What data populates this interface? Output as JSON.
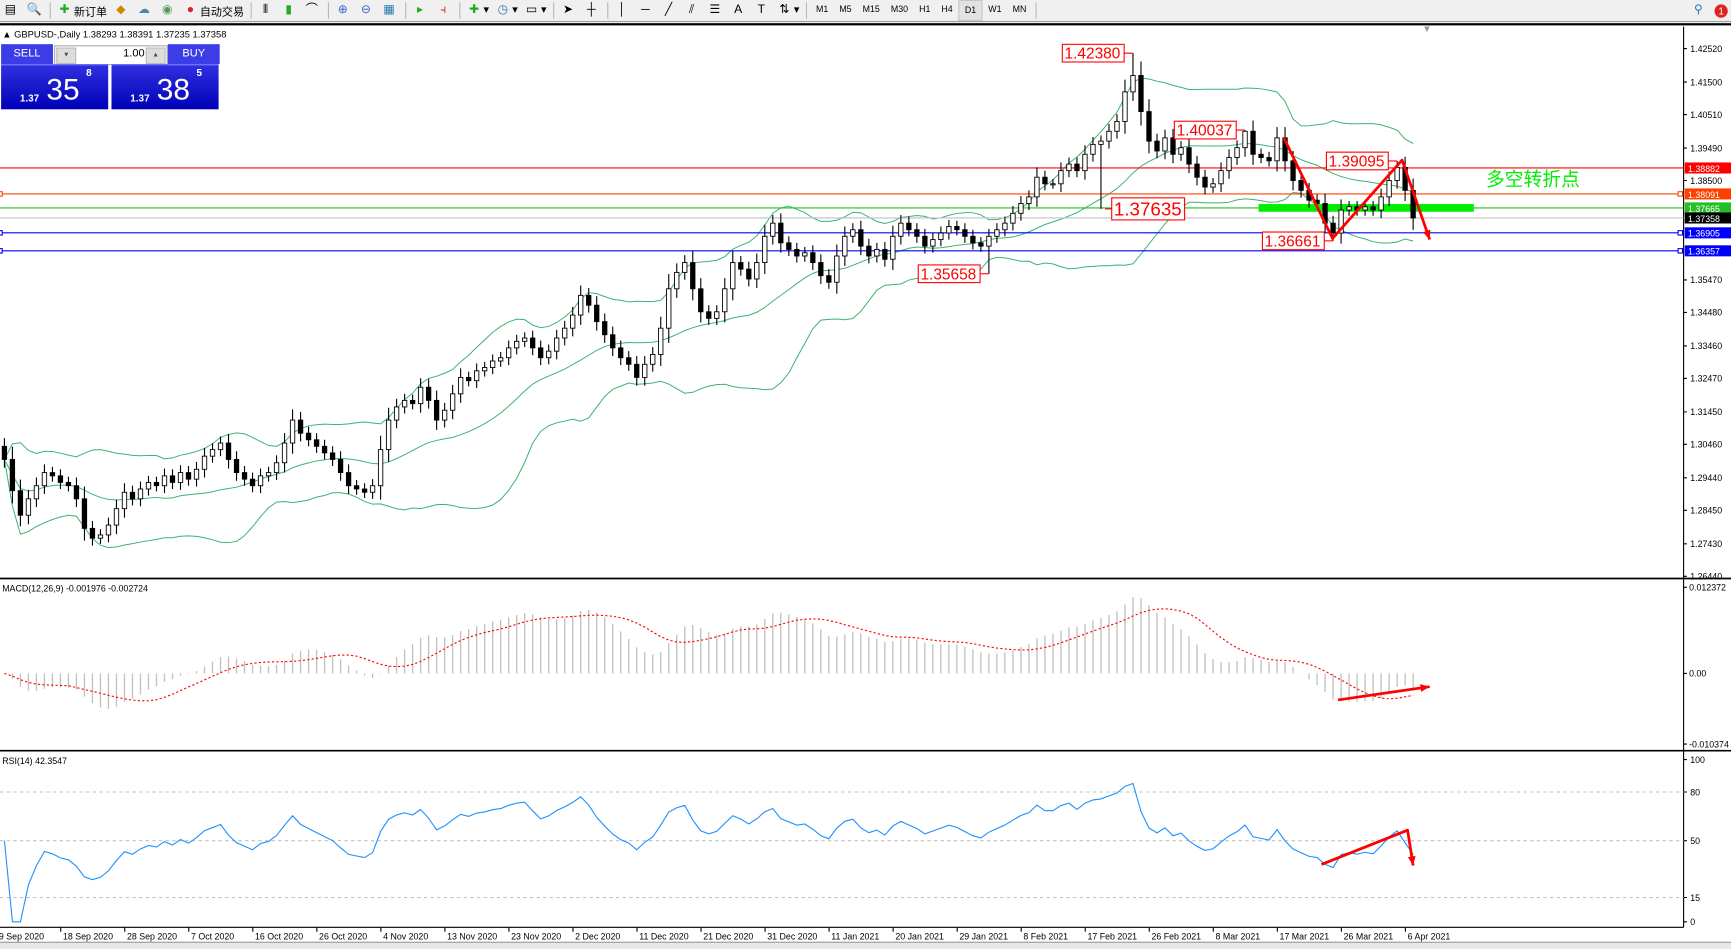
{
  "toolbar": {
    "new_order": "新订单",
    "auto_trading": "自动交易",
    "timeframes": [
      "M1",
      "M5",
      "M15",
      "M30",
      "H1",
      "H4",
      "D1",
      "W1",
      "MN"
    ],
    "active_timeframe": "D1",
    "notification_count": "1"
  },
  "chart": {
    "header": "GBPUSD-,Daily  1.38293 1.38391 1.37235 1.37358",
    "symbol_label": "GBPUSD-,Daily",
    "ohlc": "1.38293 1.38391 1.37235 1.37358"
  },
  "one_click": {
    "sell_label": "SELL",
    "buy_label": "BUY",
    "lot": "1.00",
    "sell_price": {
      "small": "1.37",
      "big": "35",
      "sup": "8"
    },
    "buy_price": {
      "small": "1.37",
      "big": "38",
      "sup": "5"
    },
    "color": "#0000c0"
  },
  "chart_data": [
    {
      "type": "candlestick",
      "symbol": "GBPUSD-",
      "timeframe": "Daily",
      "ylim": [
        1.2644,
        1.4252
      ],
      "y_ticks": [
        "1.42520",
        "1.41500",
        "1.40510",
        "1.39490",
        "1.38500",
        "1.35470",
        "1.34480",
        "1.33460",
        "1.32470",
        "1.31450",
        "1.30460",
        "1.29440",
        "1.28450",
        "1.27430",
        "1.26440"
      ],
      "x_ticks": [
        "9 Sep 2020",
        "18 Sep 2020",
        "28 Sep 2020",
        "7 Oct 2020",
        "16 Oct 2020",
        "26 Oct 2020",
        "4 Nov 2020",
        "13 Nov 2020",
        "23 Nov 2020",
        "2 Dec 2020",
        "11 Dec 2020",
        "21 Dec 2020",
        "31 Dec 2020",
        "11 Jan 2021",
        "20 Jan 2021",
        "29 Jan 2021",
        "8 Feb 2021",
        "17 Feb 2021",
        "26 Feb 2021",
        "8 Mar 2021",
        "17 Mar 2021",
        "26 Mar 2021",
        "6 Apr 2021"
      ],
      "closes": [
        1.3,
        1.2905,
        1.283,
        1.288,
        1.292,
        1.296,
        1.295,
        1.293,
        1.292,
        1.288,
        1.279,
        1.276,
        1.277,
        1.28,
        1.285,
        1.29,
        1.288,
        1.291,
        1.293,
        1.292,
        1.295,
        1.293,
        1.296,
        1.294,
        1.297,
        1.301,
        1.303,
        1.305,
        1.3,
        1.296,
        1.294,
        1.292,
        1.295,
        1.296,
        1.299,
        1.305,
        1.312,
        1.308,
        1.306,
        1.304,
        1.302,
        1.3,
        1.296,
        1.292,
        1.291,
        1.29,
        1.292,
        1.303,
        1.312,
        1.316,
        1.318,
        1.317,
        1.322,
        1.318,
        1.312,
        1.315,
        1.32,
        1.325,
        1.324,
        1.327,
        1.328,
        1.33,
        1.331,
        1.334,
        1.336,
        1.337,
        1.334,
        1.331,
        1.333,
        1.337,
        1.34,
        1.344,
        1.35,
        1.347,
        1.342,
        1.338,
        1.334,
        1.331,
        1.329,
        1.325,
        1.329,
        1.332,
        1.34,
        1.352,
        1.357,
        1.36,
        1.352,
        1.345,
        1.343,
        1.345,
        1.352,
        1.36,
        1.358,
        1.355,
        1.36,
        1.368,
        1.372,
        1.366,
        1.364,
        1.362,
        1.363,
        1.36,
        1.356,
        1.354,
        1.362,
        1.368,
        1.37,
        1.365,
        1.362,
        1.364,
        1.361,
        1.368,
        1.372,
        1.37,
        1.368,
        1.365,
        1.367,
        1.369,
        1.371,
        1.37,
        1.368,
        1.366,
        1.365,
        1.368,
        1.37,
        1.372,
        1.375,
        1.378,
        1.38,
        1.386,
        1.384,
        1.384,
        1.388,
        1.39,
        1.388,
        1.393,
        1.396,
        1.397,
        1.4,
        1.403,
        1.412,
        1.417,
        1.406,
        1.397,
        1.394,
        1.398,
        1.393,
        1.395,
        1.39,
        1.386,
        1.383,
        1.384,
        1.388,
        1.392,
        1.395,
        1.4,
        1.393,
        1.392,
        1.391,
        1.398,
        1.391,
        1.385,
        1.382,
        1.379,
        1.378,
        1.372,
        1.369,
        1.376,
        1.377,
        1.376,
        1.377,
        1.376,
        1.38,
        1.385,
        1.389,
        1.382,
        1.37358
      ],
      "indicators_on_chart": "Bollinger Bands (20)",
      "band_color": "#3cb371",
      "hlines": [
        {
          "price": 1.38882,
          "label": "1.38882",
          "color": "#ff0000"
        },
        {
          "price": 1.38091,
          "label": "1.38091",
          "color": "#ff4000"
        },
        {
          "price": 1.37665,
          "label": "1.37665",
          "color": "#22c022"
        },
        {
          "price": 1.37358,
          "label": "1.37358",
          "color": "#000000"
        },
        {
          "price": 1.36905,
          "label": "1.36905",
          "color": "#0000ff"
        },
        {
          "price": 1.36357,
          "label": "1.36357",
          "color": "#0000ff"
        }
      ],
      "annotations": [
        {
          "text": "1.42380",
          "price": 1.4238,
          "bar": 141
        },
        {
          "text": "1.40037",
          "price": 1.40037,
          "bar": 155
        },
        {
          "text": "1.39095",
          "price": 1.39095,
          "bar": 174
        },
        {
          "text": "1.37635",
          "price": 1.37635,
          "bar": 137
        },
        {
          "text": "1.36661",
          "price": 1.36661,
          "bar": 166
        },
        {
          "text": "1.35658",
          "price": 1.35658,
          "bar": 123
        }
      ],
      "zone": {
        "price": 1.37665,
        "text": "多空转折点",
        "color": "#00ee00"
      },
      "arrow_color": "#ff0000"
    },
    {
      "type": "bar",
      "title": "MACD(12,26,9) -0.001976 -0.002724",
      "ylim": [
        -0.010374,
        0.012372
      ],
      "y_ticks": [
        "0.012372",
        "0.00",
        "-0.010374"
      ],
      "histogram_color": "#c0c0c0",
      "signal_color": "#ff0000"
    },
    {
      "type": "line",
      "title": "RSI(14) 42.3547",
      "ylim": [
        0,
        100
      ],
      "y_ticks": [
        "100",
        "80",
        "50",
        "15",
        "0"
      ],
      "levels": [
        80,
        50,
        15
      ],
      "line_color": "#1e90ff"
    }
  ]
}
